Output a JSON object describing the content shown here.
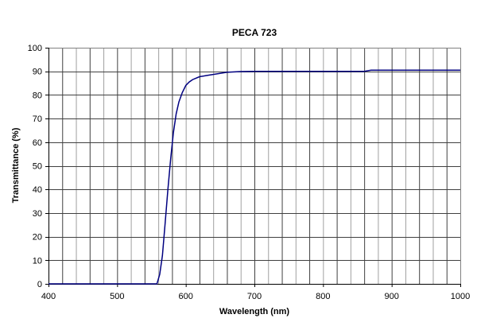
{
  "chart_data": {
    "type": "line",
    "title": "PECA 723",
    "xlabel": "Wavelength (nm)",
    "ylabel": "Transmittance (%)",
    "xlim": [
      400,
      1000
    ],
    "ylim": [
      0,
      100
    ],
    "x_ticks": [
      400,
      500,
      600,
      700,
      800,
      900,
      1000
    ],
    "y_ticks": [
      0,
      10,
      20,
      30,
      40,
      50,
      60,
      70,
      80,
      90,
      100
    ],
    "x_grid_step": 20,
    "y_grid_step": 10,
    "grid": true,
    "legend": null,
    "series": [
      {
        "name": "PECA 723",
        "color": "#000080",
        "x": [
          400,
          450,
          500,
          540,
          555,
          558,
          562,
          566,
          570,
          574,
          578,
          582,
          586,
          590,
          595,
          600,
          605,
          610,
          620,
          630,
          640,
          660,
          680,
          700,
          750,
          800,
          860,
          870,
          900,
          950,
          1000
        ],
        "y": [
          0,
          0,
          0,
          0,
          0,
          0,
          4,
          12,
          26,
          40,
          53,
          64,
          72,
          77,
          81,
          84,
          85.5,
          86.5,
          87.7,
          88.2,
          88.7,
          89.6,
          89.9,
          90,
          90,
          90,
          90,
          90.5,
          90.5,
          90.5,
          90.5
        ]
      }
    ]
  }
}
